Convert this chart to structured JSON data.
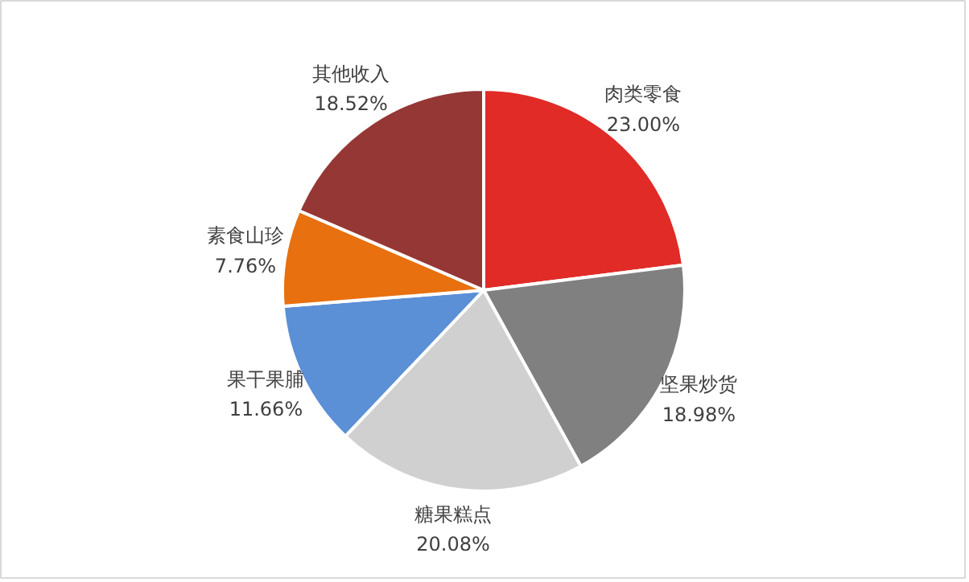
{
  "chart_data": {
    "type": "pie",
    "categories": [
      "肉类零食",
      "坚果炒货",
      "糖果糕点",
      "果干果脯",
      "素食山珍",
      "其他收入"
    ],
    "values": [
      23.0,
      18.98,
      20.08,
      11.66,
      7.76,
      18.52
    ],
    "colors": [
      "#e02b27",
      "#808080",
      "#d0d0d0",
      "#5b8fd6",
      "#e8700f",
      "#953735"
    ],
    "value_labels": [
      "23.00%",
      "18.98%",
      "20.08%",
      "11.66%",
      "7.76%",
      "18.52%"
    ]
  }
}
